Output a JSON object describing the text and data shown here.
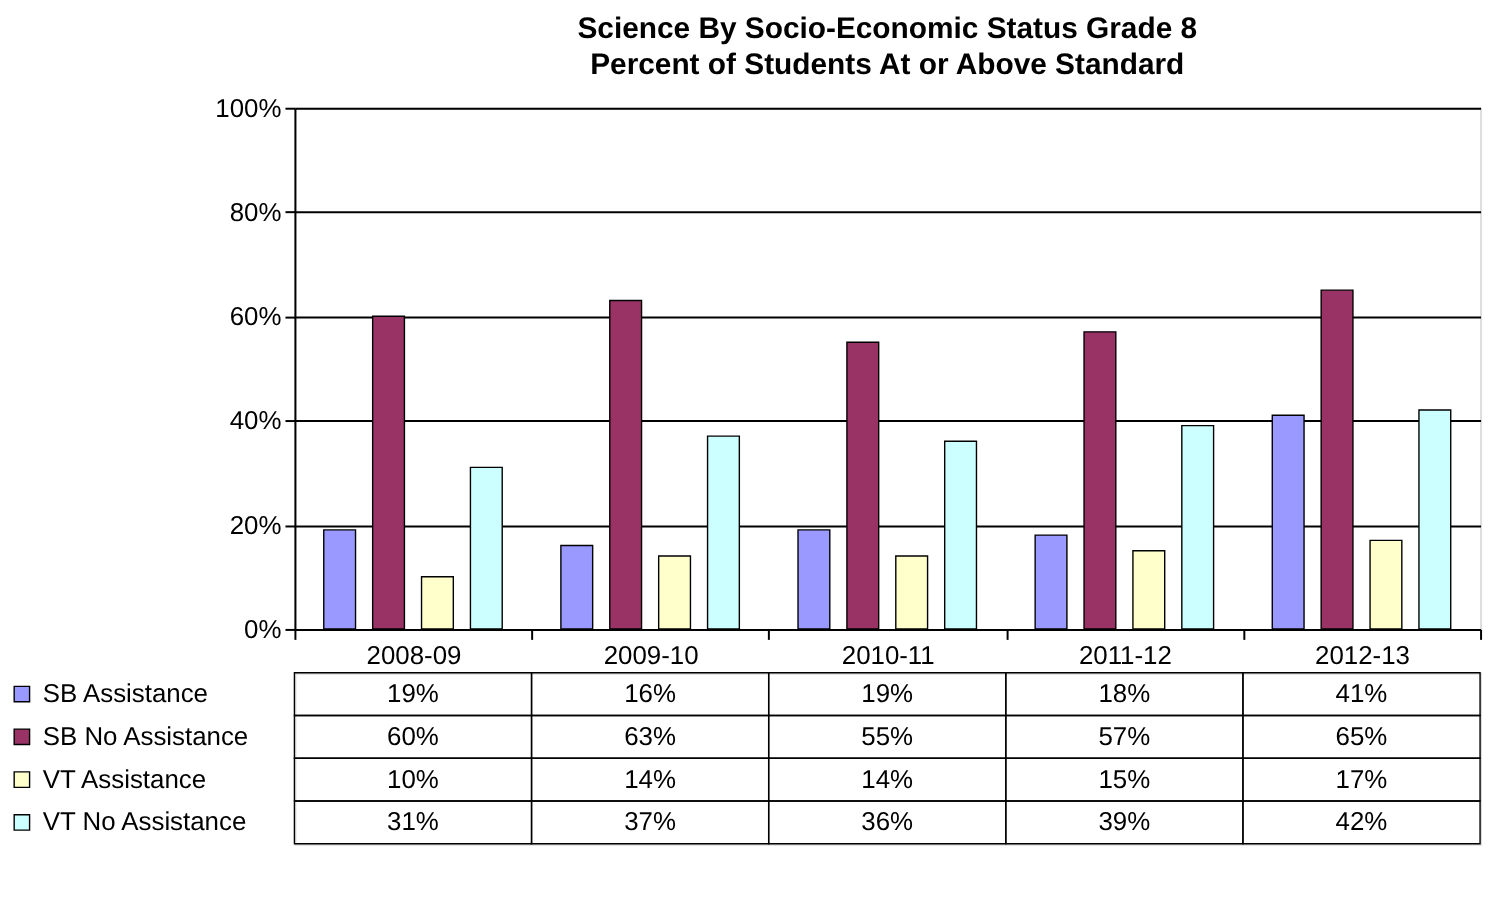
{
  "chart_data": {
    "type": "bar",
    "title": "Science By Socio-Economic Status Grade 8",
    "subtitle": "Percent of Students At or Above Standard",
    "categories": [
      "2008-09",
      "2009-10",
      "2010-11",
      "2011-12",
      "2012-13"
    ],
    "series": [
      {
        "name": "SB Assistance",
        "color": "#9999ff",
        "values": [
          19,
          16,
          19,
          18,
          41
        ],
        "value_labels": [
          "19%",
          "16%",
          "19%",
          "18%",
          "41%"
        ]
      },
      {
        "name": "SB No Assistance",
        "color": "#993366",
        "values": [
          60,
          63,
          55,
          57,
          65
        ],
        "value_labels": [
          "60%",
          "63%",
          "55%",
          "57%",
          "65%"
        ]
      },
      {
        "name": "VT Assistance",
        "color": "#ffffcc",
        "values": [
          10,
          14,
          14,
          15,
          17
        ],
        "value_labels": [
          "10%",
          "14%",
          "14%",
          "15%",
          "17%"
        ]
      },
      {
        "name": "VT No Assistance",
        "color": "#ccffff",
        "values": [
          31,
          37,
          36,
          39,
          42
        ],
        "value_labels": [
          "31%",
          "37%",
          "36%",
          "39%",
          "42%"
        ]
      }
    ],
    "ylim": [
      0,
      100
    ],
    "yticks": [
      {
        "value": 0,
        "label": "0%"
      },
      {
        "value": 20,
        "label": "20%"
      },
      {
        "value": 40,
        "label": "40%"
      },
      {
        "value": 60,
        "label": "60%"
      },
      {
        "value": 80,
        "label": "80%"
      },
      {
        "value": 100,
        "label": "100%"
      }
    ],
    "grid": "y",
    "legend": "bottom"
  }
}
